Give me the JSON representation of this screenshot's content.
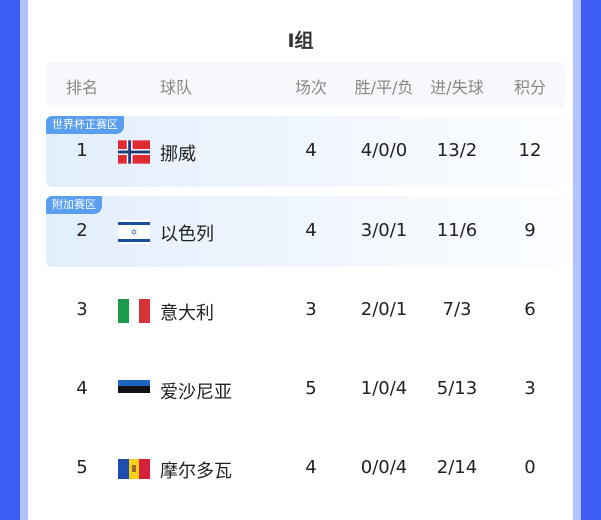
{
  "title": "I组",
  "headers": {
    "rank": "排名",
    "team": "球队",
    "played": "场次",
    "wdl": "胜/平/负",
    "goals": "进/失球",
    "points": "积分"
  },
  "colors": {
    "accent": "#3d5cf6",
    "badge": "#5a9ef0"
  },
  "rows": [
    {
      "badge": "世界杯正赛区",
      "rank": "1",
      "flag": "norway-flag-icon",
      "team": "挪威",
      "played": "4",
      "wdl": "4/0/0",
      "goals": "13/2",
      "points": "12"
    },
    {
      "badge": "附加赛区",
      "rank": "2",
      "flag": "israel-flag-icon",
      "team": "以色列",
      "played": "4",
      "wdl": "3/0/1",
      "goals": "11/6",
      "points": "9"
    },
    {
      "rank": "3",
      "flag": "italy-flag-icon",
      "team": "意大利",
      "played": "3",
      "wdl": "2/0/1",
      "goals": "7/3",
      "points": "6"
    },
    {
      "rank": "4",
      "flag": "estonia-flag-icon",
      "team": "爱沙尼亚",
      "played": "5",
      "wdl": "1/0/4",
      "goals": "5/13",
      "points": "3"
    },
    {
      "rank": "5",
      "flag": "moldova-flag-icon",
      "team": "摩尔多瓦",
      "played": "4",
      "wdl": "0/0/4",
      "goals": "2/14",
      "points": "0"
    }
  ]
}
